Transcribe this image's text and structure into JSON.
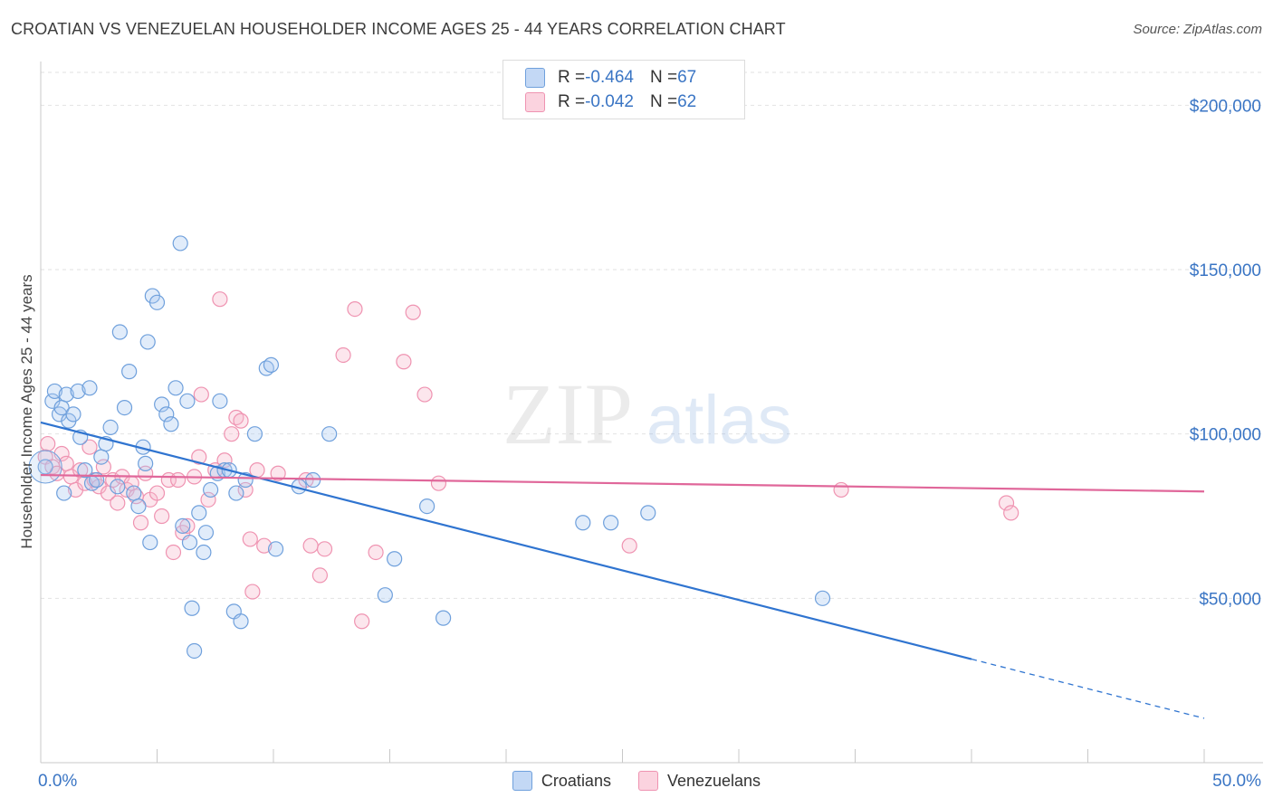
{
  "title": "CROATIAN VS VENEZUELAN HOUSEHOLDER INCOME AGES 25 - 44 YEARS CORRELATION CHART",
  "source": "Source: ZipAtlas.com",
  "watermark": {
    "zip": "ZIP",
    "atlas": "atlas"
  },
  "stats": {
    "croatians": {
      "r_label": "R = ",
      "r": "-0.464",
      "n_label": "N = ",
      "n": "67",
      "color": "#a9c8f0"
    },
    "venezuelans": {
      "r_label": "R = ",
      "r": "-0.042",
      "n_label": "N = ",
      "n": "62",
      "color": "#f6b7cb"
    }
  },
  "legend": {
    "croatians": "Croatians",
    "venezuelans": "Venezuelans"
  },
  "chart_data": {
    "type": "scatter",
    "xlabel": "",
    "ylabel": "Householder Income Ages 25 - 44 years",
    "xlim": [
      0,
      50
    ],
    "ylim": [
      0,
      210000
    ],
    "x_tick_labels": [
      "0.0%",
      "50.0%"
    ],
    "y_ticks": [
      50000,
      100000,
      150000,
      200000
    ],
    "y_tick_labels": [
      "$50,000",
      "$100,000",
      "$150,000",
      "$200,000"
    ],
    "grid": true,
    "legend_position": "bottom",
    "series": [
      {
        "name": "Croatians",
        "color": "#6fa0dc",
        "trend": {
          "x": [
            0.0,
            40.0
          ],
          "y": [
            103500,
            31500
          ],
          "dashed_to_x": 50.0,
          "dashed_to_y": 13500
        },
        "points": [
          [
            0.2,
            90000
          ],
          [
            0.5,
            110000
          ],
          [
            0.6,
            113000
          ],
          [
            0.8,
            106000
          ],
          [
            0.9,
            108000
          ],
          [
            1.1,
            112000
          ],
          [
            1.2,
            104000
          ],
          [
            1.4,
            106000
          ],
          [
            1.6,
            113000
          ],
          [
            1.7,
            99000
          ],
          [
            1.9,
            89000
          ],
          [
            2.1,
            114000
          ],
          [
            2.2,
            85000
          ],
          [
            2.6,
            93000
          ],
          [
            2.8,
            97000
          ],
          [
            3.0,
            102000
          ],
          [
            3.3,
            84000
          ],
          [
            3.6,
            108000
          ],
          [
            3.8,
            119000
          ],
          [
            4.0,
            82000
          ],
          [
            4.2,
            78000
          ],
          [
            4.4,
            96000
          ],
          [
            4.5,
            91000
          ],
          [
            4.7,
            67000
          ],
          [
            4.8,
            142000
          ],
          [
            5.0,
            140000
          ],
          [
            5.2,
            109000
          ],
          [
            5.4,
            106000
          ],
          [
            5.6,
            103000
          ],
          [
            5.8,
            114000
          ],
          [
            6.0,
            158000
          ],
          [
            6.1,
            72000
          ],
          [
            6.3,
            110000
          ],
          [
            6.4,
            67000
          ],
          [
            6.5,
            47000
          ],
          [
            6.6,
            34000
          ],
          [
            6.8,
            76000
          ],
          [
            7.0,
            64000
          ],
          [
            7.1,
            70000
          ],
          [
            7.3,
            83000
          ],
          [
            7.6,
            88000
          ],
          [
            7.7,
            110000
          ],
          [
            7.9,
            89000
          ],
          [
            8.1,
            89000
          ],
          [
            8.3,
            46000
          ],
          [
            8.4,
            82000
          ],
          [
            8.6,
            43000
          ],
          [
            8.8,
            86000
          ],
          [
            9.2,
            100000
          ],
          [
            9.7,
            120000
          ],
          [
            9.9,
            121000
          ],
          [
            10.1,
            65000
          ],
          [
            11.1,
            84000
          ],
          [
            11.7,
            86000
          ],
          [
            12.4,
            100000
          ],
          [
            14.8,
            51000
          ],
          [
            15.2,
            62000
          ],
          [
            16.6,
            78000
          ],
          [
            17.3,
            44000
          ],
          [
            23.3,
            73000
          ],
          [
            24.5,
            73000
          ],
          [
            26.1,
            76000
          ],
          [
            33.6,
            50000
          ],
          [
            1.0,
            82000
          ],
          [
            2.4,
            86000
          ],
          [
            4.6,
            128000
          ],
          [
            3.4,
            131000
          ]
        ]
      },
      {
        "name": "Venezuelans",
        "color": "#ef93b1",
        "trend": {
          "x": [
            0.0,
            50.0
          ],
          "y": [
            87500,
            82500
          ]
        },
        "points": [
          [
            0.2,
            93000
          ],
          [
            0.3,
            97000
          ],
          [
            0.5,
            90000
          ],
          [
            0.7,
            88000
          ],
          [
            0.9,
            94000
          ],
          [
            1.1,
            91000
          ],
          [
            1.3,
            87000
          ],
          [
            1.5,
            83000
          ],
          [
            1.7,
            89000
          ],
          [
            1.9,
            85000
          ],
          [
            2.1,
            96000
          ],
          [
            2.3,
            86000
          ],
          [
            2.5,
            84000
          ],
          [
            2.7,
            90000
          ],
          [
            2.9,
            82000
          ],
          [
            3.1,
            86000
          ],
          [
            3.3,
            79000
          ],
          [
            3.5,
            87000
          ],
          [
            3.7,
            83000
          ],
          [
            3.9,
            85000
          ],
          [
            4.1,
            81000
          ],
          [
            4.3,
            73000
          ],
          [
            4.5,
            88000
          ],
          [
            4.7,
            80000
          ],
          [
            5.0,
            82000
          ],
          [
            5.2,
            75000
          ],
          [
            5.5,
            86000
          ],
          [
            5.7,
            64000
          ],
          [
            5.9,
            86000
          ],
          [
            6.1,
            70000
          ],
          [
            6.3,
            72000
          ],
          [
            6.6,
            87000
          ],
          [
            6.8,
            93000
          ],
          [
            6.9,
            112000
          ],
          [
            7.2,
            80000
          ],
          [
            7.5,
            89000
          ],
          [
            7.7,
            141000
          ],
          [
            7.9,
            92000
          ],
          [
            8.2,
            100000
          ],
          [
            8.4,
            105000
          ],
          [
            8.6,
            104000
          ],
          [
            8.8,
            83000
          ],
          [
            9.0,
            68000
          ],
          [
            9.1,
            52000
          ],
          [
            9.3,
            89000
          ],
          [
            9.6,
            66000
          ],
          [
            10.2,
            88000
          ],
          [
            11.4,
            86000
          ],
          [
            11.6,
            66000
          ],
          [
            12.0,
            57000
          ],
          [
            12.2,
            65000
          ],
          [
            13.0,
            124000
          ],
          [
            13.5,
            138000
          ],
          [
            13.8,
            43000
          ],
          [
            14.4,
            64000
          ],
          [
            15.6,
            122000
          ],
          [
            16.0,
            137000
          ],
          [
            16.5,
            112000
          ],
          [
            17.1,
            85000
          ],
          [
            25.3,
            66000
          ],
          [
            34.4,
            83000
          ],
          [
            41.5,
            79000
          ]
        ]
      }
    ],
    "extra_points": [
      [
        41.7,
        76000
      ]
    ]
  }
}
